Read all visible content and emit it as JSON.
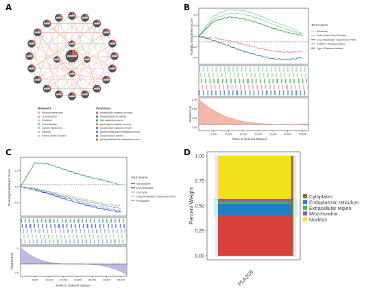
{
  "panels": {
    "a": {
      "letter": "A",
      "network_legend_title": "Networks",
      "function_legend_title": "Functions",
      "networks": [
        {
          "label": "Physical Interactions",
          "color": "#e8a0a0"
        },
        {
          "label": "Co-expression",
          "color": "#c9a0d8"
        },
        {
          "label": "Predicted",
          "color": "#f0c080"
        },
        {
          "label": "Co-localization",
          "color": "#a0b8e0"
        },
        {
          "label": "Genetic Interactions",
          "color": "#a0d8a0"
        },
        {
          "label": "Pathway",
          "color": "#9fd0d8"
        },
        {
          "label": "Shared protein domains",
          "color": "#e0d090"
        }
      ],
      "functions": [
        {
          "label": "phospholipid metabolic process",
          "color": "#e06060"
        },
        {
          "label": "phospholipase A2 activity",
          "color": "#6080c0"
        },
        {
          "label": "lipid catabolic process",
          "color": "#60a060"
        },
        {
          "label": "glycerolipid metabolic process",
          "color": "#c0a040"
        },
        {
          "label": "phospholipid catabolic process",
          "color": "#a060c0"
        },
        {
          "label": "glycerophospholipid metabolic process",
          "color": "#40a0a0"
        },
        {
          "label": "phospholipase activity",
          "color": "#808080"
        },
        {
          "label": "phosphatidylcholine metabolic process",
          "color": "#d08040"
        }
      ]
    },
    "b": {
      "letter": "B",
      "ylabel_top": "Running Enrichment Score",
      "ylabel_bottom": "Ranked List",
      "xlabel": "Rank in Ordered Dataset",
      "legend_title": "Term Name",
      "ticks_x": [
        "5,000",
        "10,000",
        "15,000",
        "20,000",
        "25,000",
        "30,000",
        "35,000"
      ],
      "ticks_y_top": [
        "0.4",
        "0.2",
        "0.0",
        "-0.2",
        "-0.4"
      ],
      "ticks_y_bottom": [
        "0.75",
        "0.50",
        "0.25",
        "0.00"
      ],
      "series": [
        {
          "name": "Ribosome",
          "color": "#7fd3c8"
        },
        {
          "name": "Graft-Versus-Host Disease",
          "color": "#a8d08d"
        },
        {
          "name": "Drug Metabolism Cytochrome P450",
          "color": "#2e9e4a"
        },
        {
          "name": "Oxidative Phosphorylation",
          "color": "#f08a8a"
        },
        {
          "name": "Type I Diabetes Mellitus",
          "color": "#2b6fb8"
        }
      ]
    },
    "c": {
      "letter": "C",
      "ylabel_top": "Running Enrichment Score",
      "ylabel_bottom": "Ranked List",
      "xlabel": "Rank in Ordered Dataset",
      "legend_title": "Term Name",
      "ticks_x": [
        "5,000",
        "10,000",
        "15,000",
        "20,000",
        "25,000",
        "30,000",
        "35,000"
      ],
      "ticks_y_top": [
        "0.2",
        "0.0",
        "-0.2"
      ],
      "ticks_y_bottom": [
        "0",
        "-0.5"
      ],
      "series": [
        {
          "name": "Spliceosome",
          "color": "#2e9e4a"
        },
        {
          "name": "Dna Replication",
          "color": "#2b4fb8"
        },
        {
          "name": "Cell Cycle",
          "color": "#9a9ad8"
        },
        {
          "name": "Drug Metabolism Cytochrome P450",
          "color": "#a8d08d"
        },
        {
          "name": "Proteasome",
          "color": "#7fa8d3"
        }
      ]
    },
    "d": {
      "letter": "D",
      "ylabel": "Percent Weight",
      "xlabel_category": "PLA2G5",
      "ticks_y": [
        "0.00",
        "0.25",
        "0.50",
        "0.75",
        "1.00"
      ],
      "legend": [
        {
          "label": "Cytoplasm",
          "color": "#8a6d3b"
        },
        {
          "label": "Endoplasmic reticulum",
          "color": "#1f7fc4"
        },
        {
          "label": "Extracellular region",
          "color": "#4caf50"
        },
        {
          "label": "Mitochondria",
          "color": "#8e5bb0"
        },
        {
          "label": "Nucleus",
          "color": "#f2e11a"
        }
      ]
    }
  },
  "chart_data": [
    {
      "type": "bar",
      "title": "",
      "xlabel": "",
      "ylabel": "Percent Weight",
      "categories": [
        "PLA2G5"
      ],
      "ylim": [
        0,
        1
      ],
      "series": [
        {
          "name": "Cytoplasm",
          "values": [
            0.4
          ]
        },
        {
          "name": "Endoplasmic reticulum",
          "values": [
            0.12
          ]
        },
        {
          "name": "Extracellular region",
          "values": [
            0.02
          ]
        },
        {
          "name": "Mitochondria",
          "values": [
            0.03
          ]
        },
        {
          "name": "Nucleus",
          "values": [
            0.43
          ]
        }
      ]
    },
    {
      "type": "line",
      "title": "",
      "xlabel": "Rank in Ordered Dataset",
      "ylabel": "Running Enrichment Score",
      "x": [
        0,
        5000,
        10000,
        15000,
        20000,
        25000,
        30000,
        35000
      ],
      "ylim": [
        -0.5,
        0.5
      ],
      "series": [
        {
          "name": "Ribosome",
          "values": [
            0,
            0.38,
            0.5,
            0.48,
            0.4,
            0.28,
            0.18,
            0.05
          ]
        },
        {
          "name": "Graft-Versus-Host Disease",
          "values": [
            0,
            0.32,
            0.43,
            0.42,
            0.34,
            0.22,
            0.12,
            0.03
          ]
        },
        {
          "name": "Drug Metabolism Cytochrome P450",
          "values": [
            0,
            0.28,
            0.36,
            0.33,
            0.25,
            0.15,
            0.07,
            0.01
          ]
        },
        {
          "name": "Oxidative Phosphorylation",
          "values": [
            0,
            -0.03,
            -0.08,
            -0.15,
            -0.22,
            -0.28,
            -0.3,
            -0.28
          ]
        },
        {
          "name": "Type I Diabetes Mellitus",
          "values": [
            0,
            -0.08,
            -0.18,
            -0.28,
            -0.36,
            -0.42,
            -0.44,
            -0.4
          ]
        }
      ]
    },
    {
      "type": "line",
      "title": "",
      "xlabel": "Rank in Ordered Dataset",
      "ylabel": "Running Enrichment Score",
      "x": [
        0,
        5000,
        10000,
        15000,
        20000,
        25000,
        30000,
        35000
      ],
      "ylim": [
        -0.35,
        0.35
      ],
      "series": [
        {
          "name": "Spliceosome",
          "values": [
            0,
            0.3,
            0.28,
            0.22,
            0.16,
            0.11,
            0.07,
            0.02
          ]
        },
        {
          "name": "Dna Replication",
          "values": [
            0,
            -0.04,
            -0.09,
            -0.15,
            -0.2,
            -0.25,
            -0.29,
            -0.32
          ]
        },
        {
          "name": "Cell Cycle",
          "values": [
            0,
            -0.03,
            -0.08,
            -0.13,
            -0.18,
            -0.23,
            -0.27,
            -0.3
          ]
        },
        {
          "name": "Drug Metabolism Cytochrome P450",
          "values": [
            0,
            -0.02,
            -0.06,
            -0.1,
            -0.14,
            -0.18,
            -0.22,
            -0.24
          ]
        },
        {
          "name": "Proteasome",
          "values": [
            0,
            -0.03,
            -0.07,
            -0.12,
            -0.16,
            -0.2,
            -0.24,
            -0.27
          ]
        }
      ]
    }
  ]
}
